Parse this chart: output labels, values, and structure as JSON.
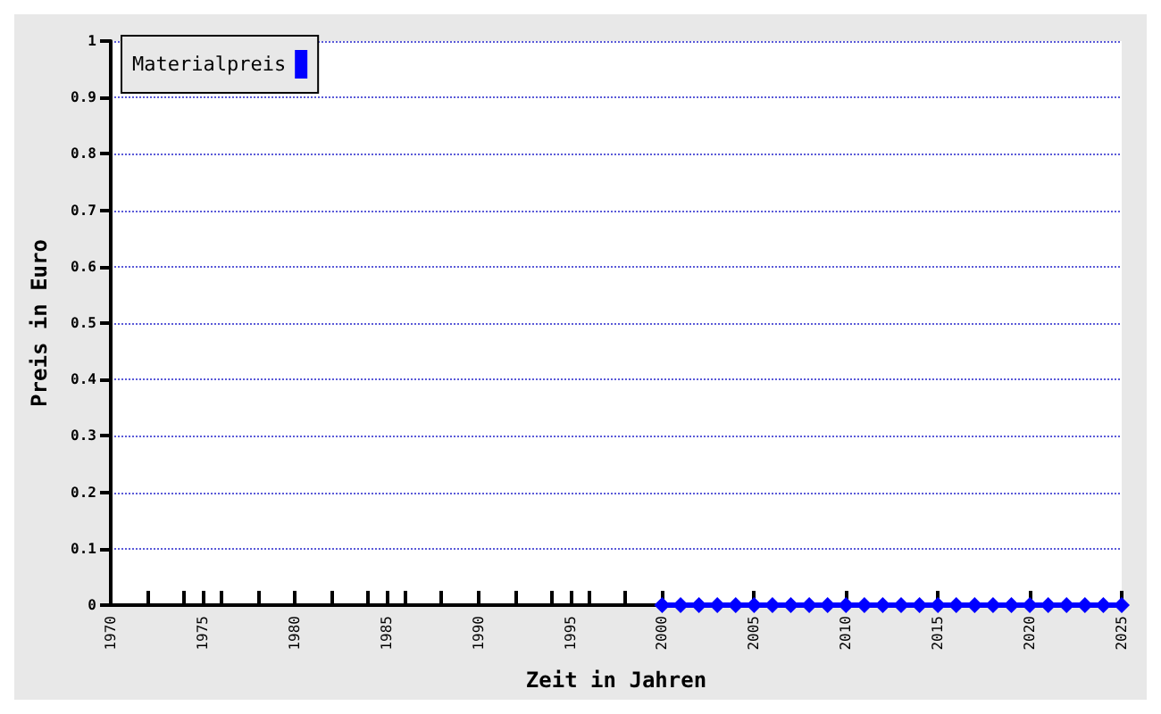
{
  "chart_data": {
    "type": "line",
    "xlabel": "Zeit in Jahren",
    "ylabel": "Preis in Euro",
    "x": [
      2000,
      2001,
      2002,
      2003,
      2004,
      2005,
      2006,
      2007,
      2008,
      2009,
      2010,
      2011,
      2012,
      2013,
      2014,
      2015,
      2016,
      2017,
      2018,
      2019,
      2020,
      2021,
      2022,
      2023,
      2024,
      2025
    ],
    "series": [
      {
        "name": "Materialpreis",
        "color": "#0000ff",
        "values": [
          0,
          0,
          0,
          0,
          0,
          0,
          0,
          0,
          0,
          0,
          0,
          0,
          0,
          0,
          0,
          0,
          0,
          0,
          0,
          0,
          0,
          0,
          0,
          0,
          0,
          0
        ]
      }
    ],
    "xlim": [
      1970,
      2025
    ],
    "xticks": [
      1970,
      {
        "value": 1972,
        "label": null
      },
      {
        "value": 1974,
        "label": null
      },
      1975,
      {
        "value": 1976,
        "label": null
      },
      {
        "value": 1978,
        "label": null
      },
      1980,
      {
        "value": 1982,
        "label": null
      },
      {
        "value": 1984,
        "label": null
      },
      1985,
      {
        "value": 1986,
        "label": null
      },
      {
        "value": 1988,
        "label": null
      },
      1990,
      {
        "value": 1992,
        "label": null
      },
      {
        "value": 1994,
        "label": null
      },
      1995,
      {
        "value": 1996,
        "label": null
      },
      {
        "value": 1998,
        "label": null
      },
      2000,
      2005,
      2010,
      2015,
      2020,
      2025
    ],
    "ylim": [
      0,
      1
    ],
    "yticks": [
      0,
      0.1,
      0.2,
      0.3,
      0.4,
      0.5,
      0.6,
      0.7,
      0.8,
      0.9,
      1
    ],
    "grid": "y",
    "legend": "top left",
    "marker": "diamond",
    "line_style": "solid"
  }
}
